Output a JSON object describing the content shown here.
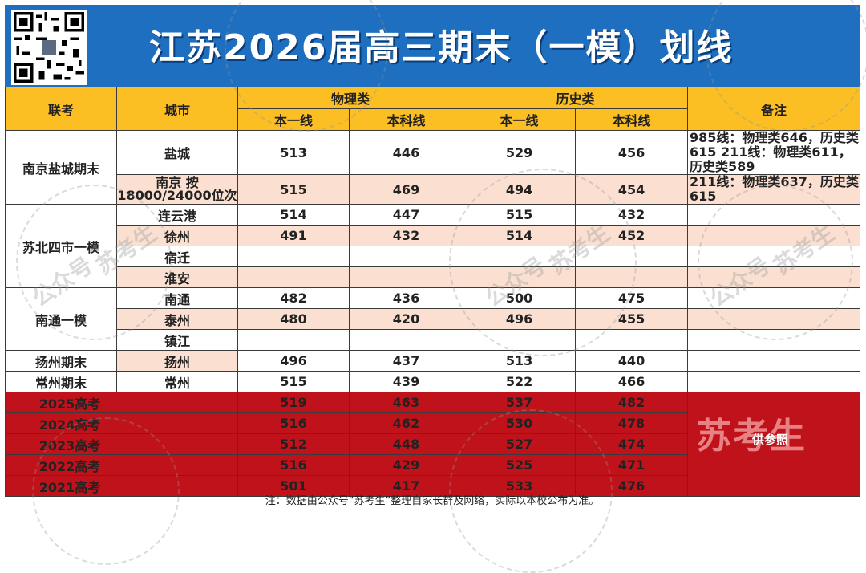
{
  "header": {
    "title": "江苏2026届高三期末（一模）划线",
    "qr_icon": "qr-code-icon",
    "color": "#1e6fbf"
  },
  "table": {
    "col_headers": {
      "union": "联考",
      "city": "城市",
      "physics": "物理类",
      "history": "历史类",
      "notes": "备注",
      "physics_tier1": "本一线",
      "physics_undergrad": "本科线",
      "history_tier1": "本一线",
      "history_undergrad": "本科线"
    },
    "groups": [
      {
        "union": "南京盐城期末",
        "rows": [
          {
            "city": "盐城",
            "p1": "513",
            "p2": "446",
            "h1": "529",
            "h2": "456",
            "note": "985线：物理类646，历史类615 211线：物理类611，历史类589"
          },
          {
            "city": "南京 按18000/24000位次",
            "p1": "515",
            "p2": "469",
            "h1": "494",
            "h2": "454",
            "note": "211线：物理类637，历史类615"
          }
        ]
      },
      {
        "union": "苏北四市一模",
        "rows": [
          {
            "city": "连云港",
            "p1": "514",
            "p2": "447",
            "h1": "515",
            "h2": "432",
            "note": ""
          },
          {
            "city": "徐州",
            "p1": "491",
            "p2": "432",
            "h1": "514",
            "h2": "452",
            "note": ""
          },
          {
            "city": "宿迁",
            "p1": "",
            "p2": "",
            "h1": "",
            "h2": "",
            "note": ""
          },
          {
            "city": "淮安",
            "p1": "",
            "p2": "",
            "h1": "",
            "h2": "",
            "note": ""
          }
        ]
      },
      {
        "union": "南通一模",
        "rows": [
          {
            "city": "南通",
            "p1": "482",
            "p2": "436",
            "h1": "500",
            "h2": "475",
            "note": ""
          },
          {
            "city": "泰州",
            "p1": "480",
            "p2": "420",
            "h1": "496",
            "h2": "455",
            "note": ""
          },
          {
            "city": "镇江",
            "p1": "",
            "p2": "",
            "h1": "",
            "h2": "",
            "note": ""
          }
        ]
      },
      {
        "union": "扬州期末",
        "rows": [
          {
            "city": "扬州",
            "p1": "496",
            "p2": "437",
            "h1": "513",
            "h2": "440",
            "note": ""
          }
        ]
      },
      {
        "union": "常州期末",
        "rows": [
          {
            "city": "常州",
            "p1": "515",
            "p2": "439",
            "h1": "522",
            "h2": "466",
            "note": ""
          }
        ]
      }
    ],
    "history_rows": [
      {
        "label": "2025高考",
        "p1": "519",
        "p2": "463",
        "h1": "537",
        "h2": "482"
      },
      {
        "label": "2024高考",
        "p1": "516",
        "p2": "462",
        "h1": "530",
        "h2": "478"
      },
      {
        "label": "2023高考",
        "p1": "512",
        "p2": "448",
        "h1": "527",
        "h2": "474"
      },
      {
        "label": "2022高考",
        "p1": "516",
        "p2": "429",
        "h1": "525",
        "h2": "471"
      },
      {
        "label": "2021高考",
        "p1": "501",
        "p2": "417",
        "h1": "533",
        "h2": "476"
      }
    ],
    "history_note": {
      "stamp": "苏考生",
      "text": "供参照"
    }
  },
  "footnote": "注：数据由公众号“苏考生”整理自家长群及网络，实际以本校公布为准。",
  "watermark": {
    "text_account": "公众号",
    "text_name": "苏考生"
  },
  "colors": {
    "header_yellow": "#fbbf23",
    "peach": "#fbe0d2",
    "history_red": "#c0121a"
  }
}
